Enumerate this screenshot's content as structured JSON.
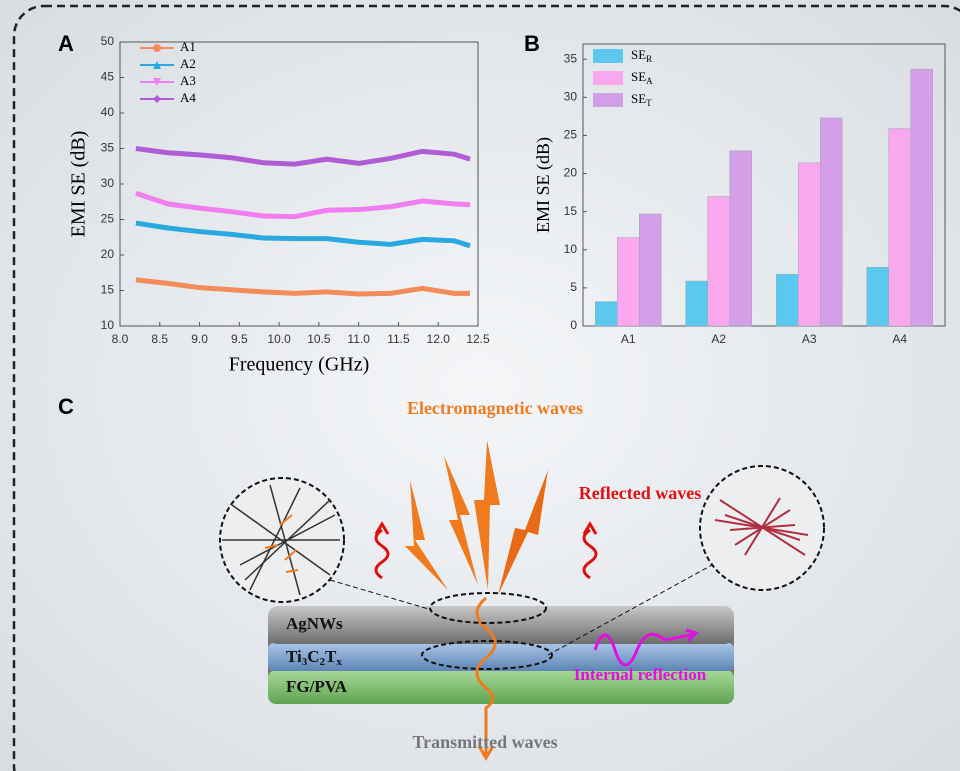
{
  "panel_labels": [
    "A",
    "B",
    "C"
  ],
  "chart_data": [
    {
      "type": "line",
      "xlabel": "Frequency (GHz)",
      "ylabel": "EMI SE (dB)",
      "x": [
        8.2,
        8.6,
        9.0,
        9.4,
        9.8,
        10.2,
        10.6,
        11.0,
        11.4,
        11.8,
        12.2,
        12.4
      ],
      "series": [
        {
          "name": "A1",
          "color": "#f28c5a",
          "marker": "circle",
          "values": [
            16.5,
            16.0,
            15.4,
            15.1,
            14.8,
            14.6,
            14.8,
            14.5,
            14.6,
            15.3,
            14.6,
            14.6
          ]
        },
        {
          "name": "A2",
          "color": "#2aa9e0",
          "marker": "triangle-up",
          "values": [
            24.5,
            23.8,
            23.3,
            22.9,
            22.4,
            22.3,
            22.3,
            21.8,
            21.5,
            22.2,
            22.0,
            21.3
          ]
        },
        {
          "name": "A3",
          "color": "#f07ef0",
          "marker": "triangle-down",
          "values": [
            28.7,
            27.2,
            26.6,
            26.1,
            25.5,
            25.4,
            26.3,
            26.4,
            26.8,
            27.6,
            27.2,
            27.1
          ]
        },
        {
          "name": "A4",
          "color": "#b05cd6",
          "marker": "diamond",
          "values": [
            35.0,
            34.4,
            34.1,
            33.7,
            33.0,
            32.8,
            33.5,
            32.9,
            33.6,
            34.6,
            34.2,
            33.5
          ]
        }
      ],
      "xlim": [
        8.0,
        12.5
      ],
      "xticks": [
        {
          "value": 8,
          "label": "8.0"
        },
        8.5,
        {
          "value": 9,
          "label": "9.0"
        },
        9.5,
        {
          "value": 10,
          "label": "10.0"
        },
        10.5,
        {
          "value": 11,
          "label": "11.0"
        },
        11.5,
        {
          "value": 12,
          "label": "12.0"
        },
        12.5
      ],
      "ylim": [
        10,
        50
      ],
      "yticks": [
        10,
        15,
        20,
        25,
        30,
        35,
        40,
        45,
        50
      ],
      "legend": "upper left"
    },
    {
      "type": "bar",
      "ylabel": "EMI SE (dB)",
      "categories": [
        "A1",
        "A2",
        "A3",
        "A4"
      ],
      "series": [
        {
          "name": "SE",
          "subscript": "R",
          "color": "#5bc8ef",
          "values": [
            3.2,
            5.9,
            6.8,
            7.7
          ]
        },
        {
          "name": "SE",
          "subscript": "A",
          "color": "#f9a8f0",
          "values": [
            11.6,
            17.0,
            21.4,
            25.9
          ]
        },
        {
          "name": "SE",
          "subscript": "T",
          "color": "#d49ee8",
          "values": [
            14.7,
            23.0,
            27.3,
            33.7
          ]
        }
      ],
      "ylim": [
        0,
        37
      ],
      "yticks": [
        0,
        5,
        10,
        15,
        20,
        25,
        30,
        35
      ],
      "legend": "upper left"
    }
  ],
  "diagram": {
    "incident": "Electromagnetic waves",
    "reflected": "Reflected waves",
    "layers": [
      {
        "segments": [
          "AgNWs"
        ]
      },
      {
        "segments": [
          "Ti",
          "3",
          "C",
          "2",
          "T",
          "x"
        ]
      },
      {
        "segments": [
          "FG/PVA"
        ]
      }
    ],
    "internal": "Internal reflection",
    "transmitted": "Transmitted waves"
  }
}
